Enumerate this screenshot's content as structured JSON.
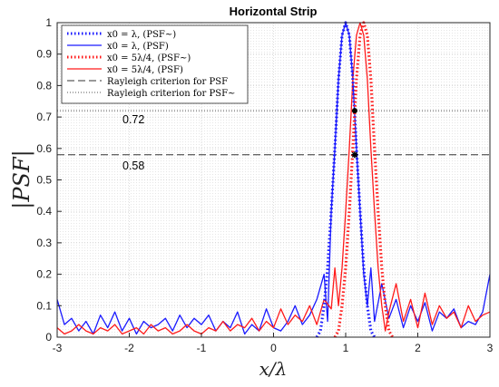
{
  "chart_data": {
    "type": "line",
    "title": "Horizontal Strip",
    "xlabel": "x/λ",
    "ylabel": "|PSF|",
    "xlim": [
      -3,
      3
    ],
    "ylim": [
      0,
      1
    ],
    "xticks": [
      "-3",
      "-2",
      "-1",
      "0",
      "1",
      "2",
      "3"
    ],
    "yticks": [
      "0",
      "0.1",
      "0.2",
      "0.3",
      "0.4",
      "0.5",
      "0.6",
      "0.7",
      "0.8",
      "0.9",
      "1"
    ],
    "grid": true,
    "legend_position": "top-left",
    "series": [
      {
        "name": "x0 = λ, (PSF~)",
        "color": "#1a1aff",
        "style": "dotted",
        "x": [
          0.6,
          0.65,
          0.7,
          0.75,
          0.8,
          0.85,
          0.9,
          0.95,
          1.0,
          1.05,
          1.1,
          1.15,
          1.2,
          1.25,
          1.3,
          1.35,
          1.4
        ],
        "y": [
          0.0,
          0.02,
          0.1,
          0.22,
          0.4,
          0.6,
          0.82,
          0.96,
          1.0,
          0.96,
          0.82,
          0.6,
          0.4,
          0.22,
          0.1,
          0.02,
          0.0
        ]
      },
      {
        "name": "x0 = λ, (PSF)",
        "color": "#1a1aff",
        "style": "solid",
        "x": [
          -3.0,
          -2.9,
          -2.8,
          -2.7,
          -2.6,
          -2.5,
          -2.4,
          -2.3,
          -2.2,
          -2.1,
          -2.0,
          -1.9,
          -1.8,
          -1.7,
          -1.6,
          -1.5,
          -1.4,
          -1.3,
          -1.2,
          -1.1,
          -1.0,
          -0.9,
          -0.8,
          -0.7,
          -0.6,
          -0.5,
          -0.4,
          -0.3,
          -0.2,
          -0.1,
          0.0,
          0.1,
          0.2,
          0.3,
          0.4,
          0.5,
          0.6,
          0.7,
          0.75,
          0.8,
          0.85,
          0.9,
          0.95,
          1.0,
          1.05,
          1.1,
          1.15,
          1.2,
          1.25,
          1.3,
          1.35,
          1.4,
          1.5,
          1.6,
          1.7,
          1.8,
          1.9,
          2.0,
          2.1,
          2.2,
          2.3,
          2.4,
          2.5,
          2.6,
          2.7,
          2.8,
          2.9,
          3.0
        ],
        "y": [
          0.12,
          0.04,
          0.06,
          0.02,
          0.05,
          0.01,
          0.07,
          0.03,
          0.08,
          0.02,
          0.06,
          0.01,
          0.05,
          0.03,
          0.04,
          0.06,
          0.02,
          0.07,
          0.03,
          0.06,
          0.04,
          0.07,
          0.02,
          0.05,
          0.03,
          0.08,
          0.01,
          0.04,
          0.02,
          0.09,
          0.03,
          0.02,
          0.05,
          0.1,
          0.04,
          0.07,
          0.12,
          0.2,
          0.05,
          0.4,
          0.6,
          0.82,
          0.96,
          1.0,
          0.96,
          0.82,
          0.6,
          0.4,
          0.2,
          0.1,
          0.22,
          0.05,
          0.17,
          0.06,
          0.12,
          0.03,
          0.1,
          0.05,
          0.11,
          0.02,
          0.08,
          0.06,
          0.09,
          0.03,
          0.05,
          0.04,
          0.08,
          0.2
        ]
      },
      {
        "name": "x0 = 5λ/4, (PSF~)",
        "color": "#ff1a1a",
        "style": "dotted",
        "x": [
          0.85,
          0.9,
          0.95,
          1.0,
          1.05,
          1.1,
          1.15,
          1.2,
          1.25,
          1.3,
          1.35,
          1.4,
          1.45,
          1.5,
          1.55,
          1.6,
          1.65
        ],
        "y": [
          0.0,
          0.02,
          0.1,
          0.22,
          0.4,
          0.6,
          0.82,
          0.96,
          1.0,
          0.96,
          0.82,
          0.6,
          0.4,
          0.22,
          0.1,
          0.02,
          0.0
        ]
      },
      {
        "name": "x0 = 5λ/4, (PSF)",
        "color": "#ff1a1a",
        "style": "solid",
        "x": [
          -3.0,
          -2.9,
          -2.8,
          -2.7,
          -2.6,
          -2.5,
          -2.4,
          -2.3,
          -2.2,
          -2.1,
          -2.0,
          -1.9,
          -1.8,
          -1.7,
          -1.6,
          -1.5,
          -1.4,
          -1.3,
          -1.2,
          -1.1,
          -1.0,
          -0.9,
          -0.8,
          -0.7,
          -0.6,
          -0.5,
          -0.4,
          -0.3,
          -0.2,
          -0.1,
          0.0,
          0.1,
          0.2,
          0.3,
          0.4,
          0.5,
          0.6,
          0.7,
          0.8,
          0.85,
          0.9,
          0.95,
          1.0,
          1.05,
          1.1,
          1.15,
          1.2,
          1.25,
          1.3,
          1.35,
          1.4,
          1.45,
          1.5,
          1.55,
          1.6,
          1.7,
          1.8,
          1.9,
          2.0,
          2.1,
          2.2,
          2.3,
          2.4,
          2.5,
          2.6,
          2.7,
          2.8,
          2.9,
          3.0
        ],
        "y": [
          0.03,
          0.01,
          0.02,
          0.04,
          0.02,
          0.01,
          0.03,
          0.02,
          0.04,
          0.01,
          0.02,
          0.03,
          0.01,
          0.04,
          0.02,
          0.03,
          0.01,
          0.02,
          0.04,
          0.02,
          0.01,
          0.03,
          0.02,
          0.05,
          0.02,
          0.04,
          0.03,
          0.06,
          0.02,
          0.05,
          0.03,
          0.09,
          0.04,
          0.07,
          0.05,
          0.1,
          0.04,
          0.12,
          0.09,
          0.22,
          0.1,
          0.22,
          0.4,
          0.6,
          0.82,
          0.96,
          1.0,
          0.96,
          0.82,
          0.6,
          0.4,
          0.22,
          0.1,
          0.02,
          0.08,
          0.17,
          0.05,
          0.12,
          0.03,
          0.14,
          0.04,
          0.1,
          0.06,
          0.08,
          0.03,
          0.1,
          0.05,
          0.07,
          0.08
        ]
      }
    ],
    "reference_lines": [
      {
        "name": "Rayleigh criterion for PSF",
        "y": 0.58,
        "label": "0.58",
        "style": "dashed",
        "color": "#333333"
      },
      {
        "name": "Rayleigh criterion for PSF~",
        "y": 0.72,
        "label": "0.72",
        "style": "dotted",
        "color": "#555555"
      }
    ],
    "markers": [
      {
        "x": 1.125,
        "y": 0.72,
        "symbol": "circle"
      },
      {
        "x": 1.125,
        "y": 0.58,
        "symbol": "asterisk"
      }
    ]
  }
}
